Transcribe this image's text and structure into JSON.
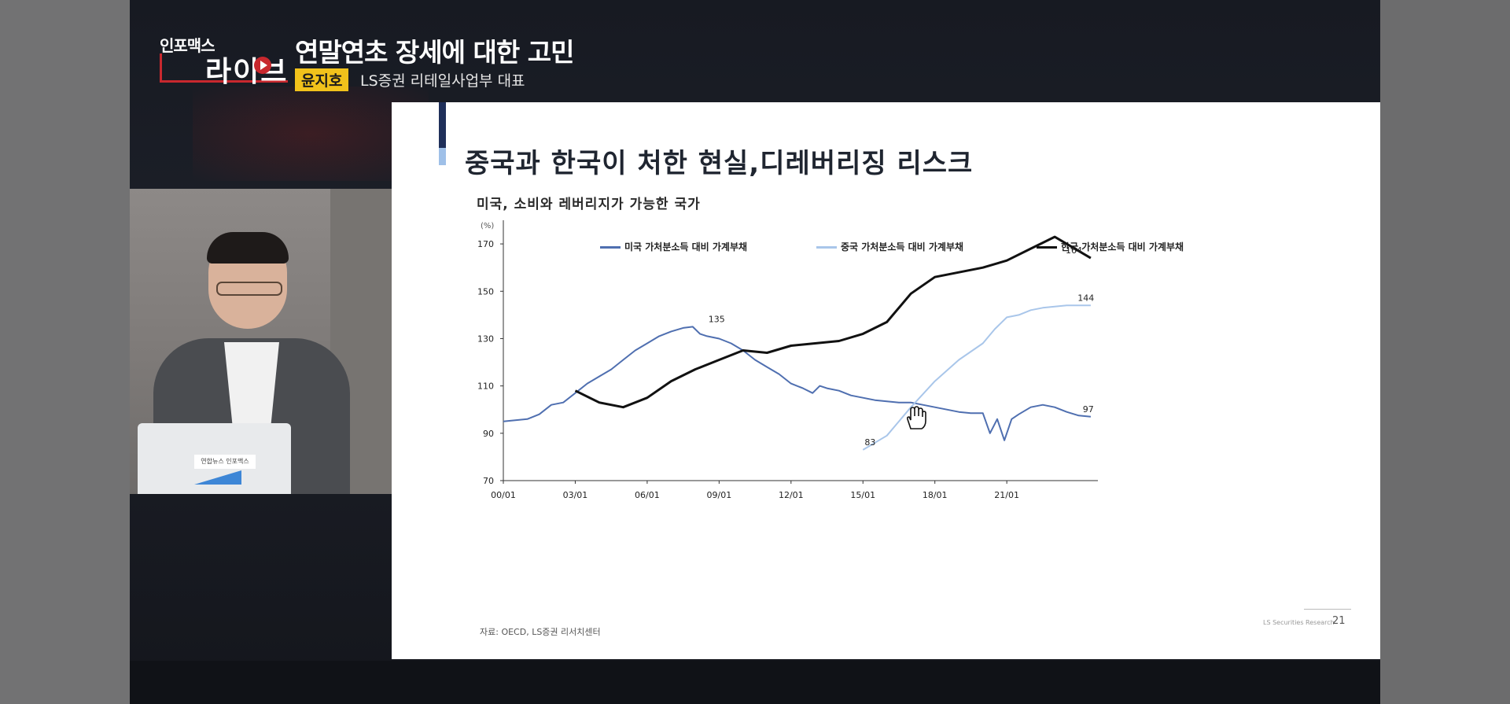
{
  "broadcast": {
    "logo_top": "인포맥스",
    "logo_main": "라이브",
    "headline": "연말연초 장세에 대한 고민",
    "speaker_name": "윤지호",
    "speaker_role": "LS증권 리테일사업부 대표",
    "laptop_label": "연합뉴스 인포맥스"
  },
  "slide": {
    "title": "중국과 한국이 처한 현실,디레버리징 리스크",
    "chart_heading": "미국, 소비와 레버리지가 가능한 국가",
    "unit": "(%)",
    "source": "자료: OECD, LS증권 리서치센터",
    "company": "LS Securities Research",
    "page_number": "21"
  },
  "chart_data": {
    "type": "line",
    "ylim": [
      70,
      180
    ],
    "y_ticks": [
      "70",
      "90",
      "110",
      "130",
      "150",
      "170"
    ],
    "x_ticks": [
      "00/01",
      "03/01",
      "06/01",
      "09/01",
      "12/01",
      "15/01",
      "18/01",
      "21/01"
    ],
    "xlim": [
      2000.0,
      2024.8
    ],
    "series": [
      {
        "name": "미국 가처분소득 대비 가계부채",
        "color": "#4f6fb0",
        "x": [
          2000.0,
          2000.5,
          2001.0,
          2001.5,
          2002.0,
          2002.5,
          2003.0,
          2003.5,
          2004.0,
          2004.5,
          2005.0,
          2005.5,
          2006.0,
          2006.5,
          2007.0,
          2007.5,
          2007.9,
          2008.2,
          2008.5,
          2009.0,
          2009.5,
          2010.0,
          2010.5,
          2011.0,
          2011.5,
          2012.0,
          2012.5,
          2012.9,
          2013.2,
          2013.5,
          2014.0,
          2014.5,
          2015.0,
          2015.5,
          2016.0,
          2016.5,
          2017.0,
          2017.5,
          2018.0,
          2018.5,
          2019.0,
          2019.5,
          2020.0,
          2020.3,
          2020.6,
          2020.9,
          2021.2,
          2021.5,
          2022.0,
          2022.5,
          2023.0,
          2023.5,
          2024.0,
          2024.5
        ],
        "values": [
          95,
          95.5,
          96,
          98,
          102,
          103,
          107,
          111,
          114,
          117,
          121,
          125,
          128,
          131,
          133,
          134.5,
          135,
          132,
          131,
          130,
          128,
          125,
          121,
          118,
          115,
          111,
          109,
          107,
          110,
          109,
          108,
          106,
          105,
          104,
          103.5,
          103,
          103,
          102,
          101,
          100,
          99,
          98.5,
          98.5,
          90,
          96,
          87,
          96,
          98,
          101,
          102,
          101,
          99,
          97.5,
          97
        ]
      },
      {
        "name": "중국 가처분소득 대비 가계부채",
        "color": "#a9c6ea",
        "x": [
          2015.0,
          2016.0,
          2017.0,
          2018.0,
          2019.0,
          2020.0,
          2020.5,
          2021.0,
          2021.5,
          2022.0,
          2022.5,
          2023.0,
          2023.5,
          2024.0,
          2024.5
        ],
        "values": [
          83,
          89,
          101,
          112,
          121,
          128,
          134,
          139,
          140,
          142,
          143,
          143.5,
          144,
          144,
          144
        ]
      },
      {
        "name": "한국 가처분소득 대비 가계부채",
        "color": "#111111",
        "x": [
          2003.0,
          2004.0,
          2005.0,
          2006.0,
          2007.0,
          2008.0,
          2009.0,
          2010.0,
          2011.0,
          2012.0,
          2013.0,
          2014.0,
          2015.0,
          2016.0,
          2017.0,
          2018.0,
          2019.0,
          2020.0,
          2021.0,
          2022.0,
          2022.5,
          2023.0,
          2023.5,
          2024.0,
          2024.5
        ],
        "values": [
          108,
          103,
          101,
          105,
          112,
          117,
          121,
          125,
          124,
          127,
          128,
          129,
          132,
          137,
          149,
          156,
          158,
          160,
          163,
          168,
          170.5,
          173,
          170,
          167,
          164
        ]
      }
    ],
    "annotations": [
      {
        "text": "135",
        "x": 2008.9,
        "y": 135
      },
      {
        "text": "164",
        "x": 2023.8,
        "y": 164
      },
      {
        "text": "144",
        "x": 2024.3,
        "y": 144
      },
      {
        "text": "97",
        "x": 2024.4,
        "y": 97
      },
      {
        "text": "83",
        "x": 2015.3,
        "y": 83
      }
    ]
  }
}
